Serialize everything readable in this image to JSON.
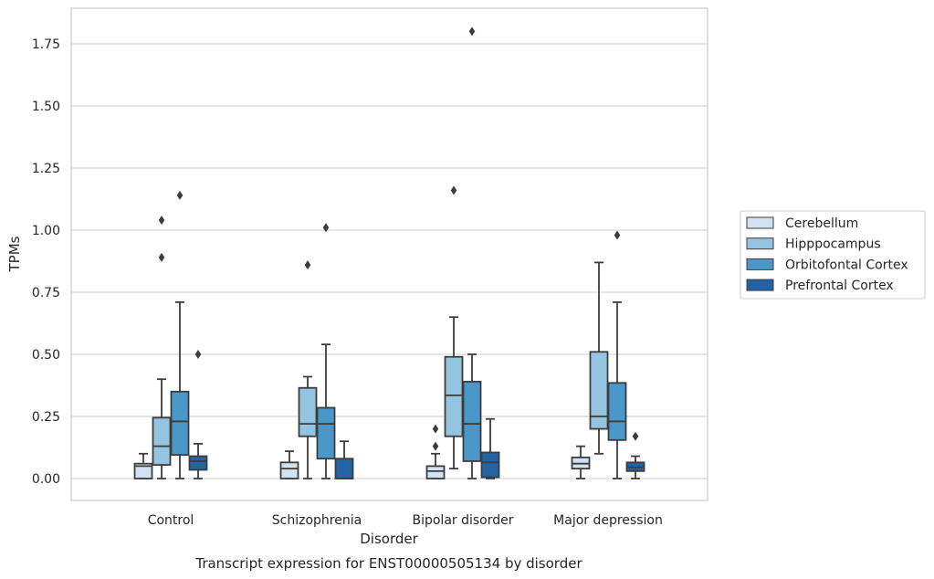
{
  "caption": "Transcript expression for ENST00000505134 by disorder",
  "chart_data": {
    "type": "box",
    "xlabel": "Disorder",
    "ylabel": "TPMs",
    "ylim": [
      -0.09,
      1.89
    ],
    "yticks": [
      "0.00",
      "0.25",
      "0.50",
      "0.75",
      "1.00",
      "1.25",
      "1.50",
      "1.75"
    ],
    "grid": "horizontal",
    "legend_position": "right",
    "categories": [
      "Control",
      "Schizophrenia",
      "Bipolar disorder",
      "Major depression"
    ],
    "series": [
      {
        "name": "Cerebellum",
        "color": "#d0e1f2",
        "boxes": [
          {
            "whislo": 0.0,
            "q1": 0.0,
            "med": 0.05,
            "q3": 0.06,
            "whishi": 0.1,
            "fliers": []
          },
          {
            "whislo": 0.0,
            "q1": 0.0,
            "med": 0.04,
            "q3": 0.065,
            "whishi": 0.11,
            "fliers": []
          },
          {
            "whislo": 0.0,
            "q1": 0.0,
            "med": 0.03,
            "q3": 0.05,
            "whishi": 0.1,
            "fliers": [
              0.13,
              0.2
            ]
          },
          {
            "whislo": 0.0,
            "q1": 0.04,
            "med": 0.06,
            "q3": 0.085,
            "whishi": 0.13,
            "fliers": []
          }
        ]
      },
      {
        "name": "Hipppocampus",
        "color": "#94c4df",
        "boxes": [
          {
            "whislo": 0.0,
            "q1": 0.055,
            "med": 0.13,
            "q3": 0.245,
            "whishi": 0.4,
            "fliers": [
              0.89,
              1.04
            ]
          },
          {
            "whislo": 0.0,
            "q1": 0.17,
            "med": 0.22,
            "q3": 0.365,
            "whishi": 0.41,
            "fliers": [
              0.86
            ]
          },
          {
            "whislo": 0.04,
            "q1": 0.17,
            "med": 0.335,
            "q3": 0.49,
            "whishi": 0.65,
            "fliers": [
              1.16
            ]
          },
          {
            "whislo": 0.1,
            "q1": 0.2,
            "med": 0.25,
            "q3": 0.51,
            "whishi": 0.87,
            "fliers": []
          }
        ]
      },
      {
        "name": "Orbitofontal Cortex",
        "color": "#4a98c9",
        "boxes": [
          {
            "whislo": 0.0,
            "q1": 0.095,
            "med": 0.23,
            "q3": 0.35,
            "whishi": 0.71,
            "fliers": [
              1.14
            ]
          },
          {
            "whislo": 0.0,
            "q1": 0.08,
            "med": 0.22,
            "q3": 0.285,
            "whishi": 0.54,
            "fliers": [
              1.01
            ]
          },
          {
            "whislo": 0.0,
            "q1": 0.07,
            "med": 0.22,
            "q3": 0.39,
            "whishi": 0.5,
            "fliers": [
              1.8
            ]
          },
          {
            "whislo": 0.0,
            "q1": 0.155,
            "med": 0.23,
            "q3": 0.385,
            "whishi": 0.71,
            "fliers": [
              0.98
            ]
          }
        ]
      },
      {
        "name": "Prefrontal Cortex",
        "color": "#2263a6",
        "boxes": [
          {
            "whislo": 0.0,
            "q1": 0.035,
            "med": 0.07,
            "q3": 0.09,
            "whishi": 0.14,
            "fliers": [
              0.5
            ]
          },
          {
            "whislo": 0.0,
            "q1": 0.0,
            "med": 0.0,
            "q3": 0.08,
            "whishi": 0.15,
            "fliers": []
          },
          {
            "whislo": 0.0,
            "q1": 0.005,
            "med": 0.065,
            "q3": 0.105,
            "whishi": 0.24,
            "fliers": []
          },
          {
            "whislo": 0.0,
            "q1": 0.03,
            "med": 0.045,
            "q3": 0.065,
            "whishi": 0.09,
            "fliers": [
              0.17
            ]
          }
        ]
      }
    ]
  }
}
